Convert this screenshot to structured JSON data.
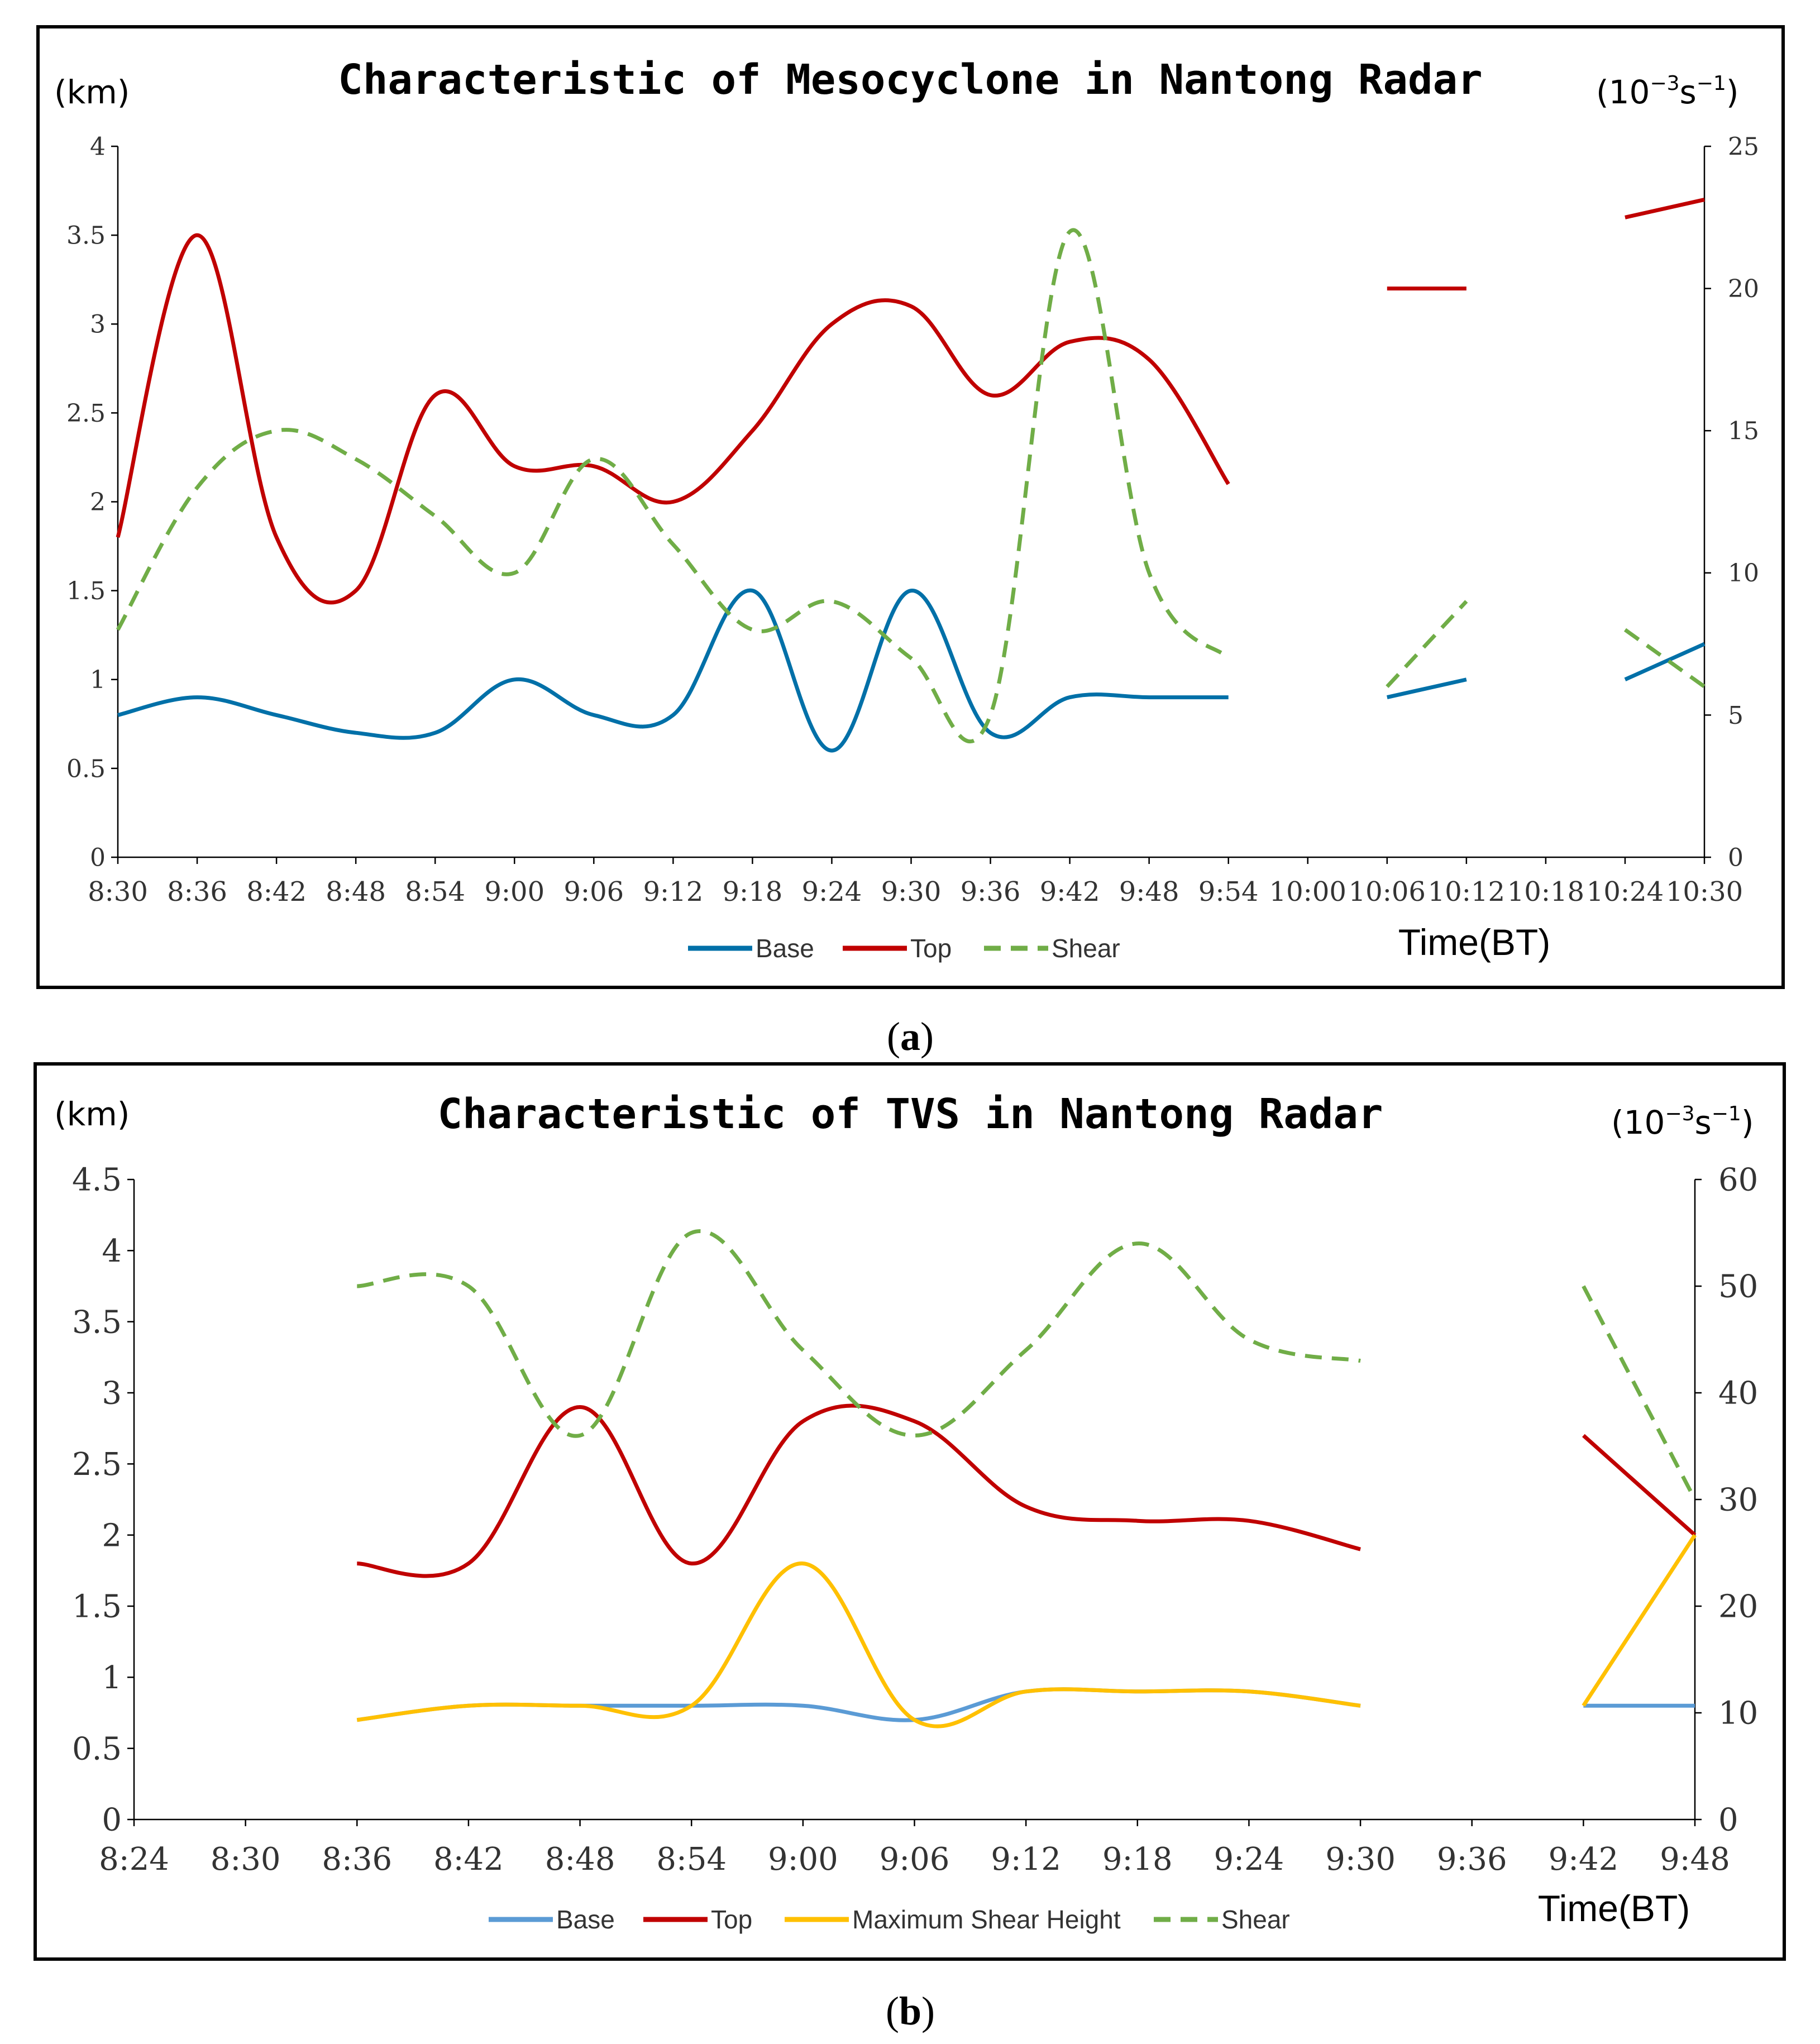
{
  "chart_data": [
    {
      "panel_label": "a",
      "type": "line",
      "title": "Characteristic of Mesocyclone in Nantong Radar",
      "ylabel_left": "(km)",
      "ylabel_right_prefix": "(10",
      "ylabel_right_exp1": "−3",
      "ylabel_right_mid": "s",
      "ylabel_right_exp2": "−1",
      "ylabel_right_suffix": ")",
      "xlabel": "Time(BT)",
      "x_ticks": [
        "8:30",
        "8:36",
        "8:42",
        "8:48",
        "8:54",
        "9:00",
        "9:06",
        "9:12",
        "9:18",
        "9:24",
        "9:30",
        "9:36",
        "9:42",
        "9:48",
        "9:54",
        "10:00",
        "10:06",
        "10:12",
        "10:18",
        "10:24",
        "10:30"
      ],
      "ylim_left": [
        0,
        4
      ],
      "y_ticks_left": [
        "0",
        "0.5",
        "1",
        "1.5",
        "2",
        "2.5",
        "3",
        "3.5",
        "4"
      ],
      "ylim_right": [
        0,
        25
      ],
      "y_ticks_right": [
        "0",
        "5",
        "10",
        "15",
        "20",
        "25"
      ],
      "legend": [
        "Base",
        "Top",
        "Shear"
      ],
      "series": [
        {
          "name": "Base",
          "color": "#0070A8",
          "axis": "left",
          "style": "solid",
          "values": [
            0.8,
            0.9,
            0.8,
            0.7,
            0.7,
            1.0,
            0.8,
            0.8,
            1.5,
            0.6,
            1.5,
            0.7,
            0.9,
            0.9,
            0.9,
            null,
            0.9,
            1.0,
            null,
            1.0,
            1.2
          ]
        },
        {
          "name": "Top",
          "color": "#C00000",
          "axis": "left",
          "style": "solid",
          "values": [
            1.8,
            3.5,
            1.8,
            1.5,
            2.6,
            2.2,
            2.2,
            2.0,
            2.4,
            3.0,
            3.1,
            2.6,
            2.9,
            2.8,
            2.1,
            null,
            3.2,
            3.2,
            null,
            3.6,
            3.7
          ]
        },
        {
          "name": "Shear",
          "color": "#70AD47",
          "axis": "right",
          "style": "dashed",
          "values": [
            8,
            13,
            15,
            14,
            12,
            10,
            14,
            11,
            8,
            9,
            7,
            5,
            22,
            10,
            7,
            null,
            6,
            9,
            null,
            8,
            6
          ]
        }
      ]
    },
    {
      "panel_label": "b",
      "type": "line",
      "title": "Characteristic of TVS in Nantong Radar",
      "ylabel_left": "(km)",
      "ylabel_right_prefix": "(10",
      "ylabel_right_exp1": "−3",
      "ylabel_right_mid": "s",
      "ylabel_right_exp2": "−1",
      "ylabel_right_suffix": ")",
      "xlabel": "Time(BT)",
      "x_ticks": [
        "8:24",
        "8:30",
        "8:36",
        "8:42",
        "8:48",
        "8:54",
        "9:00",
        "9:06",
        "9:12",
        "9:18",
        "9:24",
        "9:30",
        "9:36",
        "9:42",
        "9:48"
      ],
      "ylim_left": [
        0,
        4.5
      ],
      "y_ticks_left": [
        "0",
        "0.5",
        "1",
        "1.5",
        "2",
        "2.5",
        "3",
        "3.5",
        "4",
        "4.5"
      ],
      "ylim_right": [
        0,
        60
      ],
      "y_ticks_right": [
        "0",
        "10",
        "20",
        "30",
        "40",
        "50",
        "60"
      ],
      "legend": [
        "Base",
        "Top",
        "Maximum Shear Height",
        "Shear"
      ],
      "series": [
        {
          "name": "Base",
          "color": "#5B9BD5",
          "axis": "left",
          "style": "solid",
          "values": [
            null,
            null,
            0.7,
            0.8,
            0.8,
            0.8,
            0.8,
            0.7,
            0.9,
            0.9,
            0.9,
            0.8,
            null,
            0.8,
            0.8
          ]
        },
        {
          "name": "Top",
          "color": "#C00000",
          "axis": "left",
          "style": "solid",
          "values": [
            null,
            null,
            1.8,
            1.8,
            2.9,
            1.8,
            2.8,
            2.8,
            2.2,
            2.1,
            2.1,
            1.9,
            null,
            2.7,
            2.0
          ]
        },
        {
          "name": "Maximum Shear Height",
          "color": "#FFC000",
          "axis": "left",
          "style": "solid",
          "values": [
            null,
            null,
            0.7,
            0.8,
            0.8,
            0.8,
            1.8,
            0.7,
            0.9,
            0.9,
            0.9,
            0.8,
            null,
            0.8,
            2.0
          ]
        },
        {
          "name": "Shear",
          "color": "#70AD47",
          "axis": "right",
          "style": "dashed",
          "values": [
            null,
            null,
            50,
            50,
            36,
            55,
            44,
            36,
            44,
            54,
            45,
            43,
            null,
            50,
            30
          ]
        }
      ]
    }
  ]
}
